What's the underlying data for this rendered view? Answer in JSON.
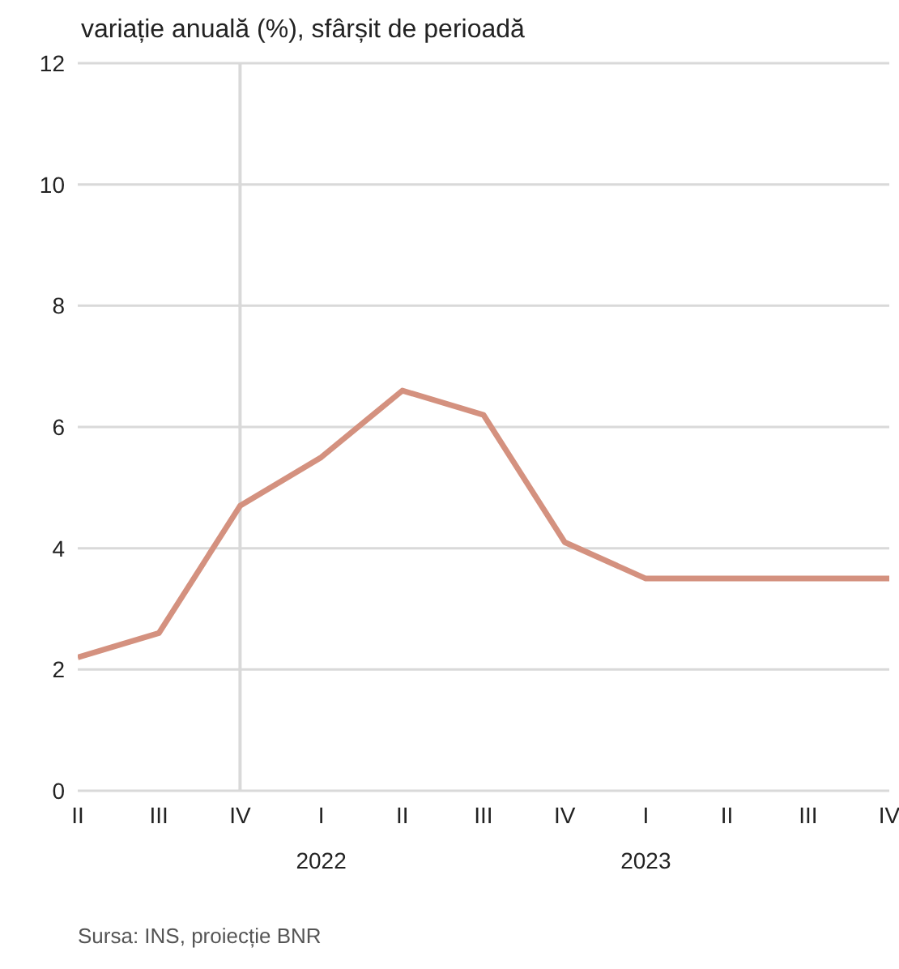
{
  "chart_data": {
    "type": "line",
    "title": "variație anuală (%), sfârșit de perioadă",
    "categories": [
      "II",
      "III",
      "IV",
      "I",
      "II",
      "III",
      "IV",
      "I",
      "II",
      "III",
      "IV"
    ],
    "series": [
      {
        "color": "#d4917f",
        "values": [
          2.2,
          2.6,
          4.7,
          5.5,
          6.6,
          6.2,
          4.1,
          3.5,
          3.5,
          3.5,
          3.5
        ]
      }
    ],
    "ylim": [
      0,
      12
    ],
    "yticks": [
      0,
      2,
      4,
      6,
      8,
      10,
      12
    ],
    "grid": "y",
    "marker": "none",
    "line_style": "solid",
    "ref_lines": [
      {
        "axis": "x",
        "value": "IV",
        "color": "#d9d9d9"
      }
    ],
    "annotations": [
      "2022",
      "2023",
      "Sursa: INS, proiecție BNR"
    ]
  }
}
